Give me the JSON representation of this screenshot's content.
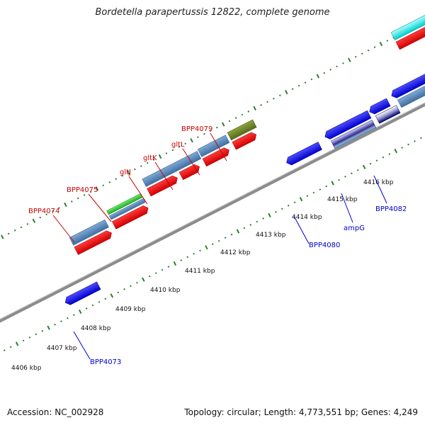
{
  "title": "Bordetella parapertussis 12822, complete genome",
  "footer": {
    "accession": "Accession: NC_002928",
    "topology": "Topology: circular; Length: 4,773,551 bp; Genes: 4,249"
  },
  "colors": {
    "backbone": "#8c8c8c",
    "tick": "#2e7d32",
    "label_red": "#cc0000",
    "label_blue": "#0000cc"
  },
  "kbp_labels": [
    "4406 kbp",
    "4407 kbp",
    "4408 kbp",
    "4409 kbp",
    "4410 kbp",
    "4411 kbp",
    "4412 kbp",
    "4413 kbp",
    "4414 kbp",
    "4415 kbp",
    "4416 kbp"
  ],
  "gene_labels_top": [
    "BPP4074",
    "BPP4075",
    "gltJ",
    "gltK",
    "gltL",
    "BPP4079"
  ],
  "gene_labels_bottom": [
    "BPP4073",
    "BPP4080",
    "ampG",
    "BPP4082"
  ]
}
